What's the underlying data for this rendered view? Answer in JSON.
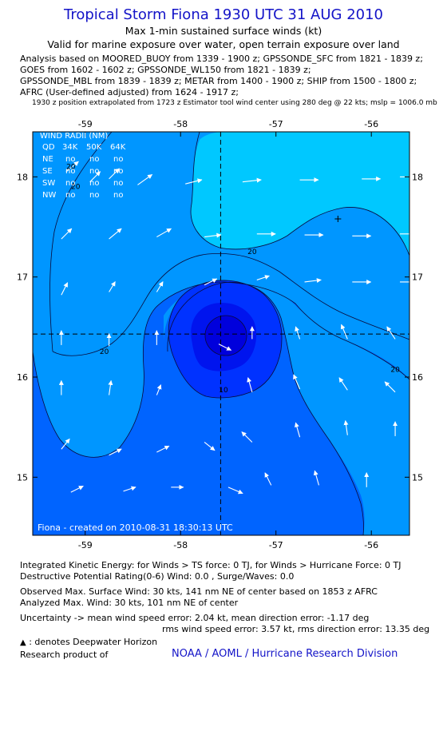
{
  "header": {
    "title": "Tropical Storm Fiona 1930 UTC 31 AUG 2010",
    "subtitle": "Max 1-min sustained surface winds (kt)",
    "validity": "Valid for marine exposure over water, open terrain exposure over land",
    "analysis_lines": [
      "Analysis based on MOORED_BUOY from 1339 - 1900 z; GPSSONDE_SFC from 1821 - 1839 z;",
      "GOES from 1602 - 1602 z; GPSSONDE_WL150 from 1821 - 1839 z;",
      "GPSSONDE_MBL from 1839 - 1839 z; METAR from 1400 - 1900 z; SHIP from 1500 - 1800 z;",
      "AFRC (User-defined adjusted) from 1624 - 1917 z;"
    ],
    "position_note": "1930 z position extrapolated from 1723 z Estimator tool wind center using 280 deg @ 22 kts; mslp = 1006.0 mb"
  },
  "wind_radii": {
    "title": "WIND RADII (NM)",
    "columns": [
      "QD",
      "34K",
      "50K",
      "64K"
    ],
    "rows": [
      [
        "NE",
        "no",
        "no",
        "no"
      ],
      [
        "SE",
        "no",
        "no",
        "no"
      ],
      [
        "SW",
        "no",
        "no",
        "no"
      ],
      [
        "NW",
        "no",
        "no",
        "no"
      ]
    ]
  },
  "map_credit": "Fiona - created on 2010-08-31 18:30:13 UTC",
  "chart_data": {
    "type": "contour",
    "x_ticks": [
      -59,
      -58,
      -57,
      -56
    ],
    "y_ticks": [
      15,
      16,
      17,
      18
    ],
    "x_tick_labels": [
      "-59",
      "-58",
      "-57",
      "-56"
    ],
    "y_tick_labels": [
      "15",
      "16",
      "17",
      "18"
    ],
    "xlim": [
      -59.55,
      -55.6
    ],
    "ylim": [
      14.42,
      18.45
    ],
    "center": {
      "lon": -57.58,
      "lat": 16.43
    },
    "contour_labels": [
      {
        "text": "20",
        "lon": -59.15,
        "lat": 18.08
      },
      {
        "text": "20",
        "lon": -59.1,
        "lat": 17.88
      },
      {
        "text": "20",
        "lon": -57.25,
        "lat": 17.23
      },
      {
        "text": "20",
        "lon": -58.8,
        "lat": 16.23
      },
      {
        "text": "20",
        "lon": -55.75,
        "lat": 16.05
      },
      {
        "text": "10",
        "lon": -57.55,
        "lat": 15.85
      }
    ],
    "colors": {
      "high_wind": "#00c8ff",
      "mid_high": "#0096ff",
      "mid": "#0064ff",
      "low": "#0032ff",
      "center": "#0000dc",
      "background": "#ffffff",
      "title": "#1414c8"
    },
    "arrows": [
      {
        "lon": -59.2,
        "lat": 18.05,
        "u": 6,
        "v": 5
      },
      {
        "lon": -58.95,
        "lat": 17.95,
        "u": 5,
        "v": 5
      },
      {
        "lon": -58.75,
        "lat": 17.98,
        "u": 5,
        "v": 5
      },
      {
        "lon": -58.45,
        "lat": 17.92,
        "u": 7,
        "v": 5
      },
      {
        "lon": -57.95,
        "lat": 17.93,
        "u": 8,
        "v": 2
      },
      {
        "lon": -57.35,
        "lat": 17.95,
        "u": 9,
        "v": 1
      },
      {
        "lon": -56.75,
        "lat": 17.97,
        "u": 9,
        "v": 0
      },
      {
        "lon": -56.1,
        "lat": 17.98,
        "u": 9,
        "v": 0
      },
      {
        "lon": -55.7,
        "lat": 18.0,
        "u": 8,
        "v": 0
      },
      {
        "lon": -59.25,
        "lat": 17.38,
        "u": 5,
        "v": 5
      },
      {
        "lon": -58.75,
        "lat": 17.38,
        "u": 6,
        "v": 5
      },
      {
        "lon": -58.25,
        "lat": 17.4,
        "u": 7,
        "v": 4
      },
      {
        "lon": -57.75,
        "lat": 17.4,
        "u": 8,
        "v": 1
      },
      {
        "lon": -57.2,
        "lat": 17.43,
        "u": 9,
        "v": 0
      },
      {
        "lon": -56.7,
        "lat": 17.42,
        "u": 9,
        "v": 0
      },
      {
        "lon": -56.2,
        "lat": 17.41,
        "u": 9,
        "v": 0
      },
      {
        "lon": -55.7,
        "lat": 17.43,
        "u": 9,
        "v": 0
      },
      {
        "lon": -59.25,
        "lat": 16.82,
        "u": 3,
        "v": 6
      },
      {
        "lon": -58.75,
        "lat": 16.85,
        "u": 3,
        "v": 5
      },
      {
        "lon": -58.25,
        "lat": 16.85,
        "u": 3,
        "v": 5
      },
      {
        "lon": -57.75,
        "lat": 16.92,
        "u": 6,
        "v": 3
      },
      {
        "lon": -57.2,
        "lat": 16.97,
        "u": 6,
        "v": 2
      },
      {
        "lon": -56.7,
        "lat": 16.95,
        "u": 8,
        "v": 1
      },
      {
        "lon": -56.2,
        "lat": 16.95,
        "u": 9,
        "v": 0
      },
      {
        "lon": -55.7,
        "lat": 16.95,
        "u": 9,
        "v": 0
      },
      {
        "lon": -59.25,
        "lat": 16.32,
        "u": 0,
        "v": 7
      },
      {
        "lon": -58.75,
        "lat": 16.31,
        "u": 0,
        "v": 6
      },
      {
        "lon": -58.25,
        "lat": 16.32,
        "u": 0,
        "v": 7
      },
      {
        "lon": -57.6,
        "lat": 16.33,
        "u": 6,
        "v": -3
      },
      {
        "lon": -57.25,
        "lat": 16.38,
        "u": 0,
        "v": 6
      },
      {
        "lon": -56.75,
        "lat": 16.38,
        "u": -2,
        "v": 6
      },
      {
        "lon": -56.25,
        "lat": 16.38,
        "u": -3,
        "v": 7
      },
      {
        "lon": -55.75,
        "lat": 16.38,
        "u": -4,
        "v": 6
      },
      {
        "lon": -59.25,
        "lat": 15.82,
        "u": 0,
        "v": 7
      },
      {
        "lon": -58.75,
        "lat": 15.82,
        "u": 1,
        "v": 7
      },
      {
        "lon": -58.25,
        "lat": 15.82,
        "u": 2,
        "v": 5
      },
      {
        "lon": -57.25,
        "lat": 15.85,
        "u": -2,
        "v": 7
      },
      {
        "lon": -56.75,
        "lat": 15.88,
        "u": -3,
        "v": 7
      },
      {
        "lon": -56.25,
        "lat": 15.87,
        "u": -4,
        "v": 6
      },
      {
        "lon": -55.75,
        "lat": 15.85,
        "u": -5,
        "v": 5
      },
      {
        "lon": -59.25,
        "lat": 15.28,
        "u": 4,
        "v": 5
      },
      {
        "lon": -58.75,
        "lat": 15.22,
        "u": 6,
        "v": 3
      },
      {
        "lon": -58.25,
        "lat": 15.25,
        "u": 6,
        "v": 3
      },
      {
        "lon": -57.75,
        "lat": 15.35,
        "u": 5,
        "v": -4
      },
      {
        "lon": -57.25,
        "lat": 15.35,
        "u": -5,
        "v": 5
      },
      {
        "lon": -56.75,
        "lat": 15.4,
        "u": -2,
        "v": 7
      },
      {
        "lon": -56.25,
        "lat": 15.42,
        "u": -1,
        "v": 7
      },
      {
        "lon": -55.75,
        "lat": 15.41,
        "u": 0,
        "v": 7
      },
      {
        "lon": -59.15,
        "lat": 14.85,
        "u": 6,
        "v": 3
      },
      {
        "lon": -58.6,
        "lat": 14.86,
        "u": 6,
        "v": 2
      },
      {
        "lon": -58.1,
        "lat": 14.9,
        "u": 6,
        "v": 0
      },
      {
        "lon": -57.5,
        "lat": 14.9,
        "u": 7,
        "v": -3
      },
      {
        "lon": -57.05,
        "lat": 14.92,
        "u": -3,
        "v": 6
      },
      {
        "lon": -56.55,
        "lat": 14.92,
        "u": -2,
        "v": 7
      },
      {
        "lon": -56.05,
        "lat": 14.9,
        "u": 0,
        "v": 7
      }
    ],
    "plus_marker": {
      "lon": -56.35,
      "lat": 17.58
    }
  },
  "footer": {
    "ike": "Integrated Kinetic Energy:  for Winds > TS force: 0 TJ,  for Winds > Hurricane Force: 0 TJ",
    "dpr": "Destructive Potential Rating(0-6)   Wind: 0.0 , Surge/Waves: 0.0",
    "observed": "Observed Max. Surface Wind: 30 kts, 141 nm NE of center based on 1853 z AFRC",
    "analyzed": "Analyzed Max. Wind: 30 kts, 101 nm NE of center",
    "uncertainty1": "Uncertainty -> mean wind speed error: 2.04 kt,   mean direction error:  -1.17 deg",
    "uncertainty2": "rms wind speed error: 3.57 kt,   rms direction error: 13.35 deg",
    "deepwater": ": denotes Deepwater Horizon",
    "research_label": "Research product of",
    "research_org": "NOAA / AOML / Hurricane Research Division"
  }
}
